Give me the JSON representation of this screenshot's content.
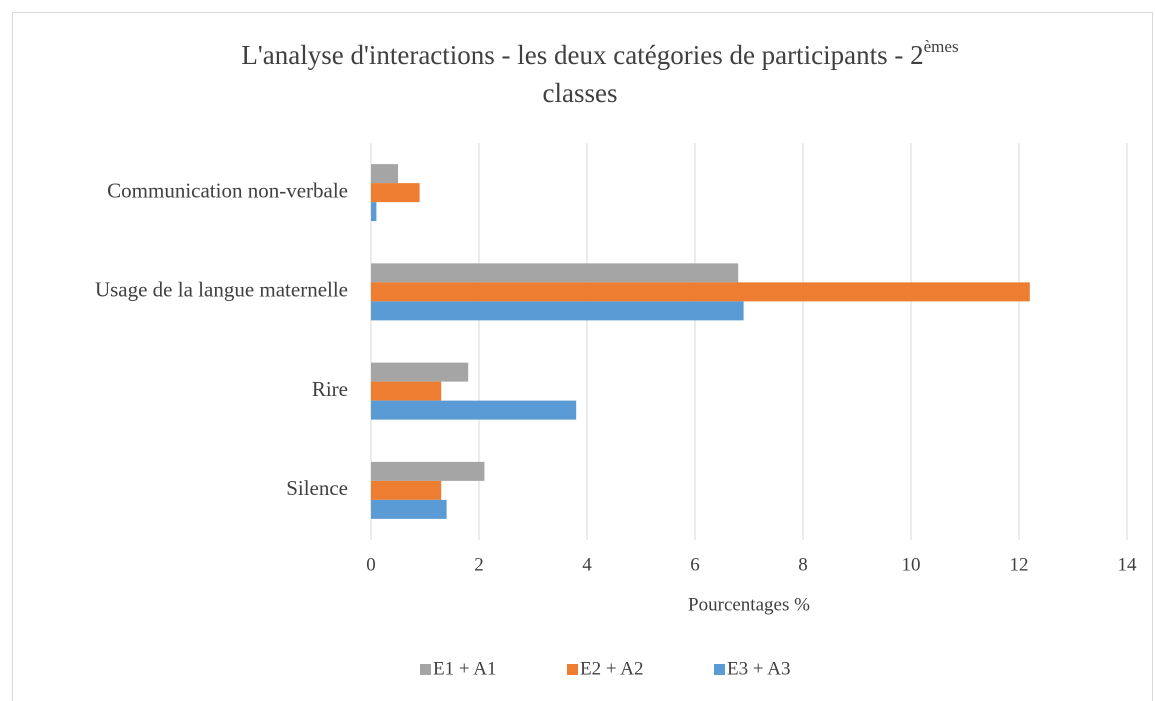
{
  "chart_data": {
    "type": "hbar",
    "title_parts": [
      "L'analyse d'interactions - les deux catégories de participants - 2",
      "èmes",
      "classes"
    ],
    "x_label": "Pourcentages %",
    "categories": [
      "Communication non-verbale",
      "Usage de la langue maternelle",
      "Rire",
      "Silence"
    ],
    "series": [
      {
        "name": "E1 + A1",
        "color": "#a5a5a5",
        "values": [
          0.5,
          6.8,
          1.8,
          2.1
        ]
      },
      {
        "name": "E2 + A2",
        "color": "#ed7d31",
        "values": [
          0.9,
          12.2,
          1.3,
          1.3
        ]
      },
      {
        "name": "E3 + A3",
        "color": "#5b9bd5",
        "values": [
          0.1,
          6.9,
          3.8,
          1.4
        ]
      }
    ],
    "xlim": [
      0,
      14
    ],
    "xticks": [
      0,
      2,
      4,
      6,
      8,
      10,
      12,
      14
    ],
    "grid": true,
    "legend": "bottom"
  }
}
